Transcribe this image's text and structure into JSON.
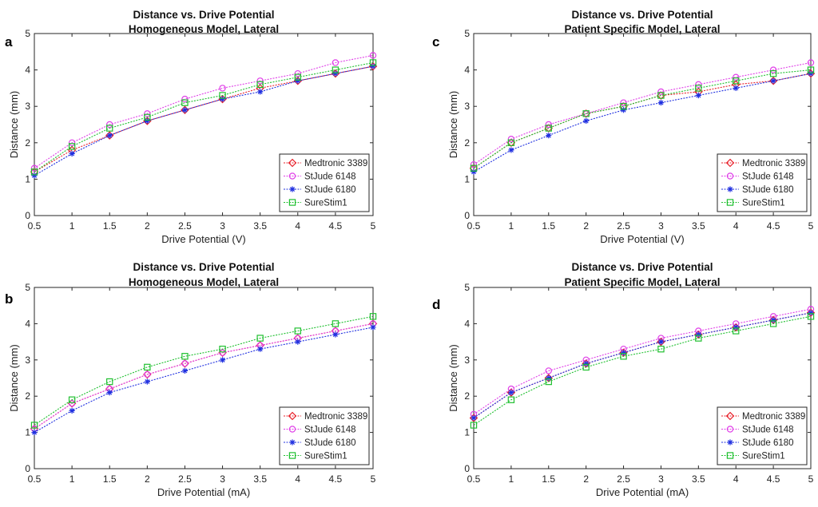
{
  "colors": {
    "Medtronic 3389": "#e8202a",
    "StJude 6148": "#e040e8",
    "StJude 6180": "#2030e0",
    "SureStim1": "#20c030"
  },
  "markers": {
    "Medtronic 3389": "diamond",
    "StJude 6148": "circle",
    "StJude 6180": "star",
    "SureStim1": "square"
  },
  "chart_data": [
    {
      "panel": "a",
      "type": "line",
      "title": [
        "Distance vs. Drive Potential",
        "Homogeneous Model, Lateral"
      ],
      "xlabel": "Drive Potential (V)",
      "ylabel": "Distance (mm)",
      "x": [
        0.5,
        1,
        1.5,
        2,
        2.5,
        3,
        3.5,
        4,
        4.5,
        5
      ],
      "x_ticks": [
        "0.5",
        "1",
        "1.5",
        "2",
        "2.5",
        "3",
        "3.5",
        "4",
        "4.5",
        "5"
      ],
      "y_ticks": [
        "0",
        "1",
        "2",
        "3",
        "4",
        "5"
      ],
      "xlim": [
        0.5,
        5
      ],
      "ylim": [
        0,
        5
      ],
      "legend": "bottom-right",
      "series": [
        {
          "name": "Medtronic 3389",
          "values": [
            1.2,
            1.8,
            2.2,
            2.6,
            2.9,
            3.2,
            3.5,
            3.7,
            3.9,
            4.1
          ]
        },
        {
          "name": "StJude 6148",
          "values": [
            1.3,
            2.0,
            2.5,
            2.8,
            3.2,
            3.5,
            3.7,
            3.9,
            4.2,
            4.4
          ]
        },
        {
          "name": "StJude 6180",
          "values": [
            1.1,
            1.7,
            2.2,
            2.6,
            2.9,
            3.2,
            3.4,
            3.7,
            3.9,
            4.1
          ]
        },
        {
          "name": "SureStim1",
          "values": [
            1.2,
            1.9,
            2.4,
            2.7,
            3.1,
            3.3,
            3.6,
            3.8,
            4.0,
            4.2
          ]
        }
      ]
    },
    {
      "panel": "c",
      "type": "line",
      "title": [
        "Distance vs. Drive Potential",
        "Patient Specific Model, Lateral"
      ],
      "xlabel": "Drive Potential (V)",
      "ylabel": "Distance (mm)",
      "x": [
        0.5,
        1,
        1.5,
        2,
        2.5,
        3,
        3.5,
        4,
        4.5,
        5
      ],
      "x_ticks": [
        "0.5",
        "1",
        "1.5",
        "2",
        "2.5",
        "3",
        "3.5",
        "4",
        "4.5",
        "5"
      ],
      "y_ticks": [
        "0",
        "1",
        "2",
        "3",
        "4",
        "5"
      ],
      "xlim": [
        0.5,
        5
      ],
      "ylim": [
        0,
        5
      ],
      "legend": "bottom-right",
      "series": [
        {
          "name": "Medtronic 3389",
          "values": [
            1.3,
            2.0,
            2.4,
            2.8,
            3.0,
            3.3,
            3.4,
            3.6,
            3.7,
            3.9
          ]
        },
        {
          "name": "StJude 6148",
          "values": [
            1.4,
            2.1,
            2.5,
            2.8,
            3.1,
            3.4,
            3.6,
            3.8,
            4.0,
            4.2
          ]
        },
        {
          "name": "StJude 6180",
          "values": [
            1.2,
            1.8,
            2.2,
            2.6,
            2.9,
            3.1,
            3.3,
            3.5,
            3.7,
            3.9
          ]
        },
        {
          "name": "SureStim1",
          "values": [
            1.3,
            2.0,
            2.4,
            2.8,
            3.0,
            3.3,
            3.5,
            3.7,
            3.9,
            4.0
          ]
        }
      ]
    },
    {
      "panel": "b",
      "type": "line",
      "title": [
        "Distance vs. Drive Potential",
        "Homogeneous Model, Lateral"
      ],
      "xlabel": "Drive Potential (mA)",
      "ylabel": "Distance (mm)",
      "x": [
        0.5,
        1,
        1.5,
        2,
        2.5,
        3,
        3.5,
        4,
        4.5,
        5
      ],
      "x_ticks": [
        "0.5",
        "1",
        "1.5",
        "2",
        "2.5",
        "3",
        "3.5",
        "4",
        "4.5",
        "5"
      ],
      "y_ticks": [
        "0",
        "1",
        "2",
        "3",
        "4",
        "5"
      ],
      "xlim": [
        0.5,
        5
      ],
      "ylim": [
        0,
        5
      ],
      "legend": "bottom-right",
      "series": [
        {
          "name": "Medtronic 3389",
          "values": [
            1.1,
            1.8,
            2.2,
            2.6,
            2.9,
            3.2,
            3.4,
            3.6,
            3.8,
            4.0
          ]
        },
        {
          "name": "StJude 6148",
          "values": [
            1.1,
            1.8,
            2.2,
            2.6,
            2.9,
            3.2,
            3.4,
            3.6,
            3.8,
            4.0
          ]
        },
        {
          "name": "StJude 6180",
          "values": [
            1.0,
            1.6,
            2.1,
            2.4,
            2.7,
            3.0,
            3.3,
            3.5,
            3.7,
            3.9
          ]
        },
        {
          "name": "SureStim1",
          "values": [
            1.2,
            1.9,
            2.4,
            2.8,
            3.1,
            3.3,
            3.6,
            3.8,
            4.0,
            4.2
          ]
        }
      ]
    },
    {
      "panel": "d",
      "type": "line",
      "title": [
        "Distance vs. Drive Potential",
        "Patient Specific Model, Lateral"
      ],
      "xlabel": "Drive Potential (mA)",
      "ylabel": "Distance (mm)",
      "x": [
        0.5,
        1,
        1.5,
        2,
        2.5,
        3,
        3.5,
        4,
        4.5,
        5
      ],
      "x_ticks": [
        "0.5",
        "1",
        "1.5",
        "2",
        "2.5",
        "3",
        "3.5",
        "4",
        "4.5",
        "5"
      ],
      "y_ticks": [
        "0",
        "1",
        "2",
        "3",
        "4",
        "5"
      ],
      "xlim": [
        0.5,
        5
      ],
      "ylim": [
        0,
        5
      ],
      "legend": "bottom-right",
      "series": [
        {
          "name": "Medtronic 3389",
          "values": [
            1.4,
            2.1,
            2.5,
            2.9,
            3.2,
            3.5,
            3.7,
            3.9,
            4.1,
            4.3
          ]
        },
        {
          "name": "StJude 6148",
          "values": [
            1.5,
            2.2,
            2.7,
            3.0,
            3.3,
            3.6,
            3.8,
            4.0,
            4.2,
            4.4
          ]
        },
        {
          "name": "StJude 6180",
          "values": [
            1.4,
            2.1,
            2.5,
            2.9,
            3.2,
            3.5,
            3.7,
            3.9,
            4.1,
            4.3
          ]
        },
        {
          "name": "SureStim1",
          "values": [
            1.2,
            1.9,
            2.4,
            2.8,
            3.1,
            3.3,
            3.6,
            3.8,
            4.0,
            4.2
          ]
        }
      ]
    }
  ]
}
